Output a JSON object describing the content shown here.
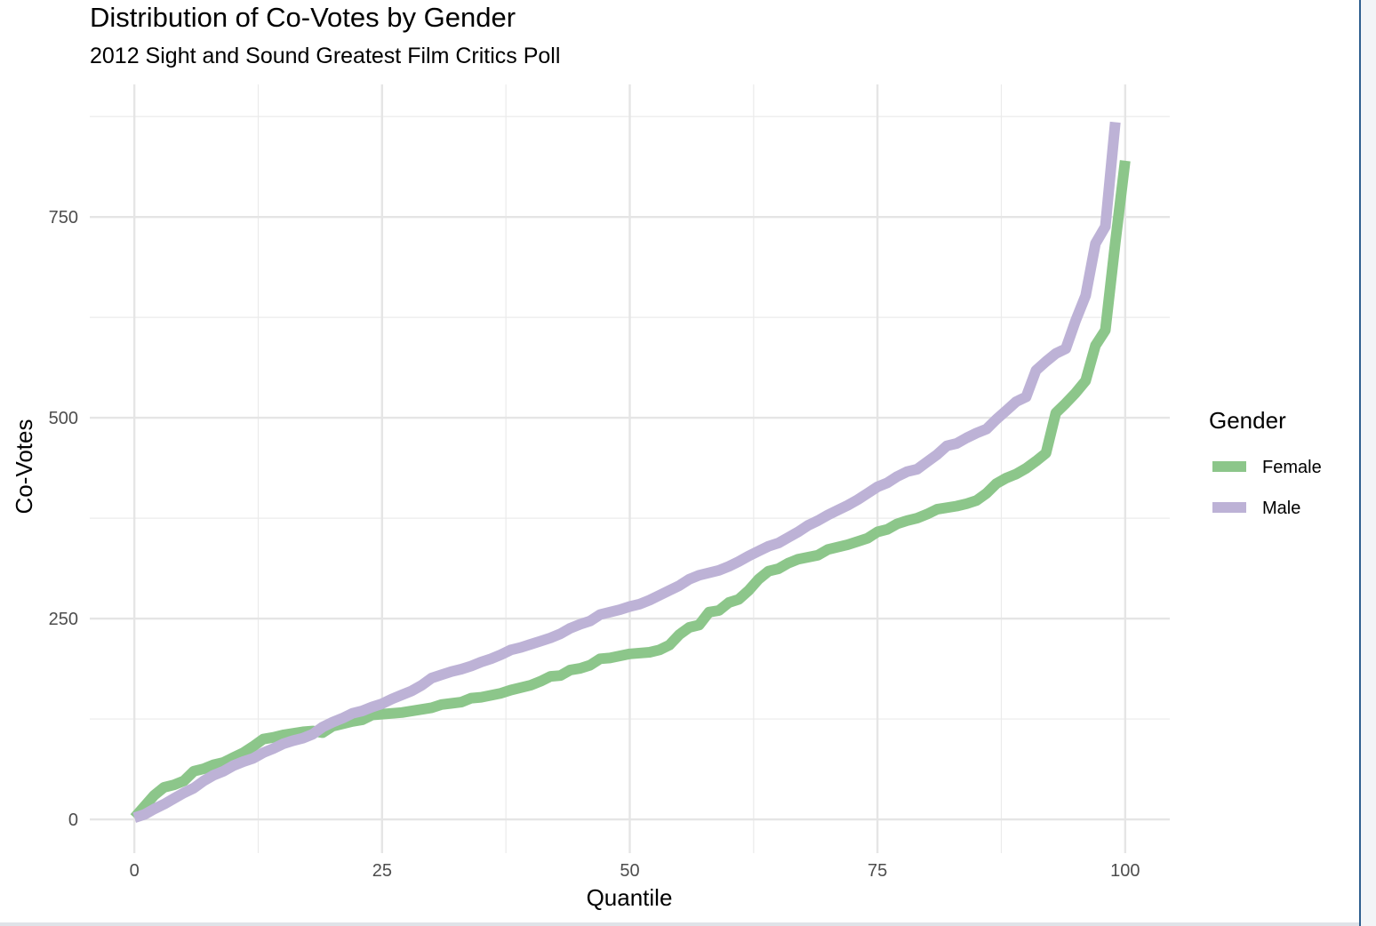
{
  "chart_data": {
    "type": "line",
    "title": "Distribution of Co-Votes by Gender",
    "subtitle": "2012 Sight and Sound Greatest Film Critics Poll",
    "xlabel": "Quantile",
    "ylabel": "Co-Votes",
    "xlim": [
      -4.5,
      104.5
    ],
    "ylim": [
      -42,
      915
    ],
    "x_ticks": [
      0,
      25,
      50,
      75,
      100
    ],
    "x_tick_labels": [
      "0",
      "25",
      "50",
      "75",
      "100"
    ],
    "y_ticks": [
      0,
      250,
      500,
      750
    ],
    "y_tick_labels": [
      "0",
      "250",
      "500",
      "750"
    ],
    "grid": true,
    "legend": {
      "title": "Gender",
      "position": "right"
    },
    "series": [
      {
        "name": "Female",
        "color": "#8cc68a",
        "points": [
          [
            0,
            2
          ],
          [
            2,
            30
          ],
          [
            3,
            40
          ],
          [
            4,
            43
          ],
          [
            5,
            48
          ],
          [
            6,
            60
          ],
          [
            7,
            63
          ],
          [
            8,
            68
          ],
          [
            9,
            71
          ],
          [
            10,
            77
          ],
          [
            11,
            83
          ],
          [
            12,
            91
          ],
          [
            13,
            100
          ],
          [
            14,
            102
          ],
          [
            15,
            105
          ],
          [
            16,
            107
          ],
          [
            17,
            109
          ],
          [
            18,
            110
          ],
          [
            19,
            108
          ],
          [
            20,
            116
          ],
          [
            21,
            119
          ],
          [
            22,
            122
          ],
          [
            23,
            124
          ],
          [
            24,
            130
          ],
          [
            25,
            131
          ],
          [
            27,
            133
          ],
          [
            30,
            139
          ],
          [
            31,
            143
          ],
          [
            33,
            146
          ],
          [
            34,
            151
          ],
          [
            35,
            152
          ],
          [
            37,
            157
          ],
          [
            38,
            161
          ],
          [
            40,
            167
          ],
          [
            41,
            172
          ],
          [
            42,
            178
          ],
          [
            43,
            179
          ],
          [
            44,
            186
          ],
          [
            45,
            188
          ],
          [
            46,
            192
          ],
          [
            47,
            200
          ],
          [
            48,
            201
          ],
          [
            50,
            206
          ],
          [
            52,
            208
          ],
          [
            53,
            211
          ],
          [
            54,
            217
          ],
          [
            55,
            230
          ],
          [
            56,
            239
          ],
          [
            57,
            242
          ],
          [
            58,
            258
          ],
          [
            59,
            260
          ],
          [
            60,
            270
          ],
          [
            61,
            274
          ],
          [
            62,
            285
          ],
          [
            63,
            299
          ],
          [
            64,
            309
          ],
          [
            65,
            312
          ],
          [
            66,
            319
          ],
          [
            67,
            324
          ],
          [
            69,
            329
          ],
          [
            70,
            336
          ],
          [
            72,
            342
          ],
          [
            73,
            346
          ],
          [
            74,
            350
          ],
          [
            75,
            358
          ],
          [
            76,
            361
          ],
          [
            77,
            368
          ],
          [
            78,
            372
          ],
          [
            79,
            375
          ],
          [
            80,
            380
          ],
          [
            81,
            386
          ],
          [
            83,
            390
          ],
          [
            84,
            393
          ],
          [
            85,
            397
          ],
          [
            86,
            406
          ],
          [
            87,
            418
          ],
          [
            88,
            425
          ],
          [
            89,
            430
          ],
          [
            90,
            437
          ],
          [
            91,
            446
          ],
          [
            92,
            456
          ],
          [
            93,
            506
          ],
          [
            94,
            518
          ],
          [
            95,
            531
          ],
          [
            96,
            546
          ],
          [
            97,
            590
          ],
          [
            98,
            609
          ],
          [
            99,
            718
          ],
          [
            100,
            820
          ]
        ]
      },
      {
        "name": "Male",
        "color": "#bdb2d6",
        "points": [
          [
            0,
            2
          ],
          [
            1,
            6
          ],
          [
            2,
            13
          ],
          [
            3,
            19
          ],
          [
            4,
            26
          ],
          [
            5,
            33
          ],
          [
            6,
            39
          ],
          [
            7,
            48
          ],
          [
            8,
            55
          ],
          [
            9,
            60
          ],
          [
            10,
            67
          ],
          [
            11,
            72
          ],
          [
            12,
            76
          ],
          [
            13,
            83
          ],
          [
            14,
            88
          ],
          [
            15,
            94
          ],
          [
            16,
            98
          ],
          [
            17,
            101
          ],
          [
            18,
            106
          ],
          [
            19,
            115
          ],
          [
            20,
            121
          ],
          [
            21,
            126
          ],
          [
            22,
            132
          ],
          [
            23,
            135
          ],
          [
            24,
            140
          ],
          [
            25,
            144
          ],
          [
            26,
            150
          ],
          [
            27,
            155
          ],
          [
            28,
            160
          ],
          [
            29,
            167
          ],
          [
            30,
            176
          ],
          [
            31,
            180
          ],
          [
            32,
            184
          ],
          [
            33,
            187
          ],
          [
            34,
            191
          ],
          [
            35,
            196
          ],
          [
            36,
            200
          ],
          [
            37,
            205
          ],
          [
            38,
            211
          ],
          [
            39,
            214
          ],
          [
            40,
            218
          ],
          [
            41,
            222
          ],
          [
            42,
            226
          ],
          [
            43,
            231
          ],
          [
            44,
            238
          ],
          [
            45,
            243
          ],
          [
            46,
            247
          ],
          [
            47,
            255
          ],
          [
            48,
            258
          ],
          [
            49,
            261
          ],
          [
            50,
            265
          ],
          [
            51,
            268
          ],
          [
            52,
            273
          ],
          [
            53,
            279
          ],
          [
            54,
            285
          ],
          [
            55,
            291
          ],
          [
            56,
            299
          ],
          [
            57,
            304
          ],
          [
            58,
            307
          ],
          [
            59,
            310
          ],
          [
            60,
            315
          ],
          [
            61,
            321
          ],
          [
            62,
            328
          ],
          [
            63,
            334
          ],
          [
            64,
            340
          ],
          [
            65,
            344
          ],
          [
            66,
            351
          ],
          [
            67,
            358
          ],
          [
            68,
            366
          ],
          [
            69,
            372
          ],
          [
            70,
            379
          ],
          [
            71,
            385
          ],
          [
            72,
            391
          ],
          [
            73,
            398
          ],
          [
            74,
            406
          ],
          [
            75,
            414
          ],
          [
            76,
            419
          ],
          [
            77,
            427
          ],
          [
            78,
            433
          ],
          [
            79,
            436
          ],
          [
            80,
            445
          ],
          [
            81,
            454
          ],
          [
            82,
            465
          ],
          [
            83,
            468
          ],
          [
            84,
            475
          ],
          [
            85,
            481
          ],
          [
            86,
            486
          ],
          [
            87,
            498
          ],
          [
            88,
            509
          ],
          [
            89,
            520
          ],
          [
            90,
            526
          ],
          [
            91,
            559
          ],
          [
            92,
            570
          ],
          [
            93,
            580
          ],
          [
            94,
            586
          ],
          [
            95,
            621
          ],
          [
            96,
            652
          ],
          [
            97,
            717
          ],
          [
            98,
            738
          ],
          [
            99,
            868
          ]
        ]
      }
    ]
  }
}
